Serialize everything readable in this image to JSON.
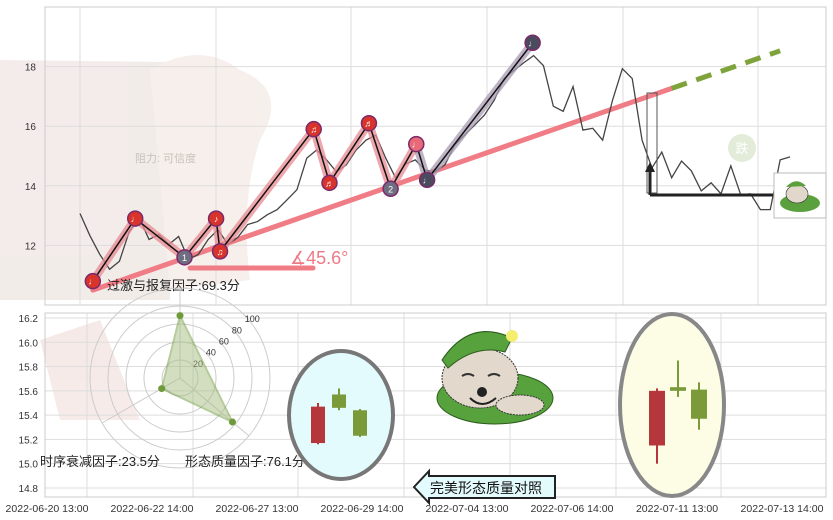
{
  "chart_data": [
    {
      "type": "line",
      "ylim": [
        10,
        20
      ],
      "y_ticks": [
        "12",
        "14",
        "16",
        "18"
      ],
      "grid": true,
      "price_series": [
        13.07,
        12.33,
        11.7,
        11.2,
        11.47,
        12.47,
        12.93,
        12.2,
        12.37,
        12.03,
        12.3,
        11.53,
        11.7,
        12.2,
        12.53,
        12.03,
        12.27,
        12.7,
        12.8,
        13.03,
        13.2,
        13.53,
        13.87,
        14.93,
        15.2,
        14.87,
        14.47,
        14.7,
        15.2,
        15.53,
        15.7,
        14.93,
        14.27,
        14.73,
        14.87,
        14.53,
        14.47,
        14.7,
        15.37,
        15.7,
        16.03,
        16.37,
        16.87,
        17.6,
        17.87,
        18.13,
        18.37,
        18.03,
        16.67,
        16.5,
        17.33,
        15.87,
        15.93,
        15.53,
        16.87,
        17.93,
        17.6,
        15.53,
        14.6,
        15.13,
        14.27,
        14.83,
        14.5,
        13.83,
        14.1,
        13.73,
        14.67,
        13.7,
        13.73,
        13.2,
        13.2,
        14.87,
        14.97
      ],
      "pivots": [
        {
          "i": 1.3,
          "v": 10.8,
          "label": "♩",
          "color": "#d9342b"
        },
        {
          "i": 5.6,
          "v": 12.9,
          "label": "♩",
          "color": "#d9342b"
        },
        {
          "i": 10.6,
          "v": 11.6,
          "label": "1",
          "color": "#6e6e80"
        },
        {
          "i": 13.8,
          "v": 12.9,
          "label": "♪",
          "color": "#d9342b"
        },
        {
          "i": 14.2,
          "v": 11.8,
          "label": "♫",
          "color": "#d9342b"
        },
        {
          "i": 23.7,
          "v": 15.9,
          "label": "♫",
          "color": "#d9342b"
        },
        {
          "i": 25.3,
          "v": 14.1,
          "label": "♬",
          "color": "#d9342b"
        },
        {
          "i": 29.3,
          "v": 16.1,
          "label": "♬",
          "color": "#d9342b"
        },
        {
          "i": 31.5,
          "v": 13.9,
          "label": "2",
          "color": "#6e6e80"
        },
        {
          "i": 34.1,
          "v": 15.4,
          "label": "♩",
          "color": "#e86a78"
        },
        {
          "i": 35.2,
          "v": 14.2,
          "label": "♩",
          "color": "#4b4b5e"
        },
        {
          "i": 45.9,
          "v": 18.8,
          "label": "♩",
          "color": "#4b4b5e"
        }
      ],
      "trend_line": {
        "from": [
          1.3,
          10.5
        ],
        "to": [
          60,
          17.27
        ],
        "projection_to": [
          71,
          18.53
        ]
      },
      "angle_label": "∡45.6°",
      "watermark": "阻力: 可信度",
      "badge": "跌"
    },
    {
      "type": "candlestick",
      "ylim": [
        14.75,
        16.25
      ],
      "y_ticks": [
        "16.2",
        "16.0",
        "15.8",
        "15.6",
        "15.4",
        "15.2",
        "15.0",
        "14.8"
      ],
      "x_ticks": [
        "2022-06-20 13:00",
        "2022-06-22 14:00",
        "2022-06-27 13:00",
        "2022-06-29 14:00",
        "2022-07-04 13:00",
        "2022-07-06 14:00",
        "2022-07-11 13:00",
        "2022-07-13 14:00"
      ],
      "reference_candles": [
        {
          "o": 15.47,
          "c": 15.17,
          "h": 15.5,
          "l": 15.16,
          "color": "#b5373b"
        },
        {
          "o": 15.46,
          "c": 15.57,
          "h": 15.62,
          "l": 15.44,
          "color": "#7b9a3a"
        },
        {
          "o": 15.44,
          "c": 15.23,
          "h": 15.45,
          "l": 15.22,
          "color": "#7b9a3a"
        }
      ],
      "actual_candles": [
        {
          "o": 15.6,
          "c": 15.15,
          "h": 15.62,
          "l": 15.0,
          "color": "#b5373b"
        },
        {
          "o": 15.6,
          "c": 15.63,
          "h": 15.85,
          "l": 15.55,
          "color": "#7b9a3a"
        },
        {
          "o": 15.61,
          "c": 15.37,
          "h": 15.67,
          "l": 15.28,
          "color": "#7b9a3a"
        }
      ],
      "radar": {
        "ring_labels": [
          "20",
          "40",
          "60",
          "80",
          "100"
        ],
        "values": [
          69.3,
          23.5,
          76.1
        ]
      },
      "callout": "完美形态质量对照"
    }
  ],
  "factors": {
    "excess": "过激与报复因子:69.3分",
    "decay": "时序衰减因子:23.5分",
    "quality": "形态质量因子:76.1分"
  },
  "colors": {
    "trend": "#f07c86",
    "projection": "#7ea33a",
    "price": "#333333",
    "up": "#b5373b",
    "down": "#7b9a3a"
  }
}
